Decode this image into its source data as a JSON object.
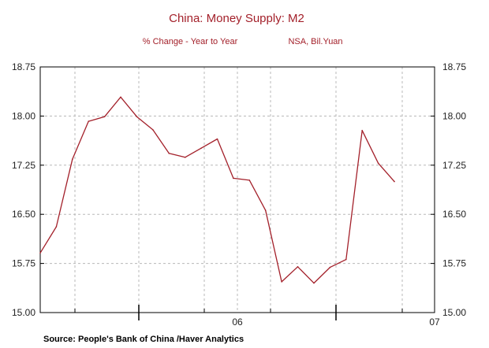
{
  "colors": {
    "title": "#a3202a",
    "line": "#a3202a",
    "axis": "#000000",
    "grid": "#b8b8b8",
    "text": "#222222"
  },
  "chart_data": {
    "type": "line",
    "title": "China: Money Supply: M2",
    "subtitle_left": "% Change - Year to Year",
    "subtitle_right": "NSA, Bil.Yuan",
    "source": "Source:  People's Bank of China /Haver Analytics",
    "xlabel": "",
    "ylabel": "",
    "ylim": [
      15.0,
      18.75
    ],
    "y_ticks": [
      "18.75",
      "18.00",
      "17.25",
      "16.50",
      "15.75",
      "15.00"
    ],
    "x_tick_labels": [
      "06",
      "07"
    ],
    "grid": true,
    "series": [
      {
        "values": [
          15.91,
          16.31,
          17.34,
          17.92,
          17.99,
          18.29,
          17.99,
          17.79,
          17.43,
          17.37,
          17.51,
          17.65,
          17.05,
          17.02,
          16.56,
          15.47,
          15.7,
          15.45,
          15.69,
          15.81,
          17.78,
          17.28,
          17.0
        ]
      }
    ]
  }
}
